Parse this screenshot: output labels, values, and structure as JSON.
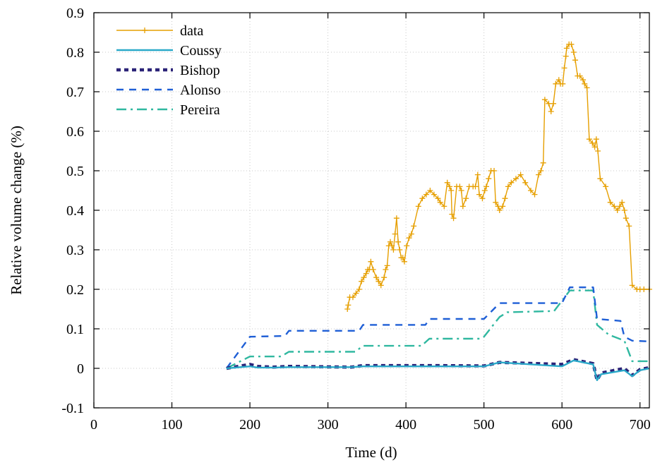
{
  "chart_data": {
    "type": "line",
    "title": "",
    "xlabel": "Time (d)",
    "ylabel": "Relative volume change (%)",
    "xlim": [
      0,
      712
    ],
    "ylim": [
      -0.1,
      0.9
    ],
    "xticks": [
      0,
      100,
      200,
      300,
      400,
      500,
      600,
      700
    ],
    "yticks": [
      -0.1,
      0,
      0.1,
      0.2,
      0.3,
      0.4,
      0.5,
      0.6,
      0.7,
      0.8,
      0.9
    ],
    "xtick_labels": [
      "0",
      "100",
      "200",
      "300",
      "400",
      "500",
      "600",
      "700"
    ],
    "ytick_labels": [
      "-0.1",
      "0",
      "0.1",
      "0.2",
      "0.3",
      "0.4",
      "0.5",
      "0.6",
      "0.7",
      "0.8",
      "0.9"
    ],
    "grid": true,
    "legend_position": "top-left",
    "series": [
      {
        "name": "data",
        "color": "#e69f00",
        "style": "solid-plus",
        "x": [
          325,
          326,
          328,
          332,
          336,
          340,
          343,
          346,
          349,
          351,
          353,
          355,
          358,
          362,
          365,
          368,
          372,
          374,
          376,
          378,
          380,
          382,
          384,
          386,
          388,
          390,
          392,
          394,
          396,
          398,
          401,
          404,
          407,
          410,
          416,
          421,
          426,
          431,
          436,
          441,
          444,
          449,
          453,
          456,
          458,
          459,
          461,
          465,
          469,
          471,
          473,
          477,
          481,
          486,
          489,
          492,
          494,
          498,
          501,
          503,
          506,
          509,
          513,
          515,
          518,
          520,
          524,
          527,
          531,
          535,
          541,
          547,
          553,
          560,
          565,
          570,
          573,
          576,
          578,
          583,
          586,
          589,
          592,
          596,
          598,
          601,
          603,
          605,
          606,
          609,
          612,
          615,
          617,
          620,
          623,
          627,
          629,
          632,
          635,
          639,
          642,
          644,
          646,
          649,
          656,
          662,
          667,
          671,
          674,
          677,
          680,
          682,
          686,
          690,
          696,
          700,
          705,
          712
        ],
        "y": [
          0.15,
          0.16,
          0.18,
          0.18,
          0.19,
          0.2,
          0.22,
          0.23,
          0.24,
          0.25,
          0.25,
          0.27,
          0.25,
          0.23,
          0.22,
          0.21,
          0.23,
          0.25,
          0.26,
          0.31,
          0.32,
          0.31,
          0.3,
          0.34,
          0.38,
          0.32,
          0.3,
          0.28,
          0.28,
          0.27,
          0.31,
          0.33,
          0.34,
          0.36,
          0.41,
          0.43,
          0.44,
          0.45,
          0.44,
          0.43,
          0.42,
          0.41,
          0.47,
          0.46,
          0.45,
          0.39,
          0.38,
          0.46,
          0.46,
          0.45,
          0.41,
          0.43,
          0.46,
          0.46,
          0.46,
          0.49,
          0.44,
          0.43,
          0.45,
          0.46,
          0.48,
          0.5,
          0.5,
          0.42,
          0.41,
          0.4,
          0.41,
          0.43,
          0.46,
          0.47,
          0.48,
          0.49,
          0.47,
          0.45,
          0.44,
          0.49,
          0.5,
          0.52,
          0.68,
          0.67,
          0.65,
          0.67,
          0.72,
          0.73,
          0.72,
          0.72,
          0.76,
          0.79,
          0.81,
          0.82,
          0.82,
          0.8,
          0.78,
          0.74,
          0.74,
          0.73,
          0.72,
          0.71,
          0.58,
          0.57,
          0.56,
          0.58,
          0.55,
          0.48,
          0.46,
          0.42,
          0.41,
          0.4,
          0.41,
          0.42,
          0.4,
          0.38,
          0.36,
          0.21,
          0.2,
          0.2,
          0.2,
          0.2
        ]
      },
      {
        "name": "Coussy",
        "color": "#2aa9c9",
        "style": "solid",
        "x": [
          170,
          200,
          210,
          230,
          250,
          330,
          345,
          440,
          500,
          520,
          600,
          615,
          640,
          645,
          650,
          680,
          690,
          700,
          712
        ],
        "y": [
          0,
          0.005,
          0.002,
          0.002,
          0.003,
          0.003,
          0.005,
          0.005,
          0.005,
          0.015,
          0.005,
          0.02,
          0.01,
          -0.03,
          -0.015,
          -0.005,
          -0.02,
          -0.005,
          0
        ]
      },
      {
        "name": "Bishop",
        "color": "#2b2378",
        "style": "dotted-thick",
        "x": [
          170,
          200,
          210,
          230,
          250,
          330,
          345,
          440,
          500,
          520,
          600,
          615,
          640,
          645,
          650,
          680,
          690,
          700,
          712
        ],
        "y": [
          0,
          0.01,
          0.005,
          0.003,
          0.005,
          0.003,
          0.007,
          0.007,
          0.006,
          0.015,
          0.01,
          0.022,
          0.012,
          -0.03,
          -0.012,
          0,
          -0.018,
          -0.003,
          0.002
        ]
      },
      {
        "name": "Alonso",
        "color": "#1f5fd6",
        "style": "dashed",
        "x": [
          170,
          200,
          245,
          250,
          340,
          345,
          425,
          430,
          500,
          520,
          600,
          610,
          640,
          645,
          675,
          680,
          690,
          712
        ],
        "y": [
          0,
          0.08,
          0.082,
          0.095,
          0.095,
          0.11,
          0.11,
          0.125,
          0.125,
          0.165,
          0.165,
          0.205,
          0.205,
          0.125,
          0.12,
          0.08,
          0.07,
          0.068
        ]
      },
      {
        "name": "Pereira",
        "color": "#30b8a0",
        "style": "dashdot",
        "x": [
          170,
          200,
          240,
          250,
          335,
          345,
          420,
          430,
          495,
          500,
          520,
          530,
          590,
          610,
          640,
          645,
          660,
          680,
          690,
          712
        ],
        "y": [
          0,
          0.03,
          0.03,
          0.042,
          0.042,
          0.057,
          0.057,
          0.075,
          0.075,
          0.08,
          0.13,
          0.142,
          0.145,
          0.197,
          0.197,
          0.11,
          0.085,
          0.07,
          0.018,
          0.018
        ]
      }
    ]
  }
}
